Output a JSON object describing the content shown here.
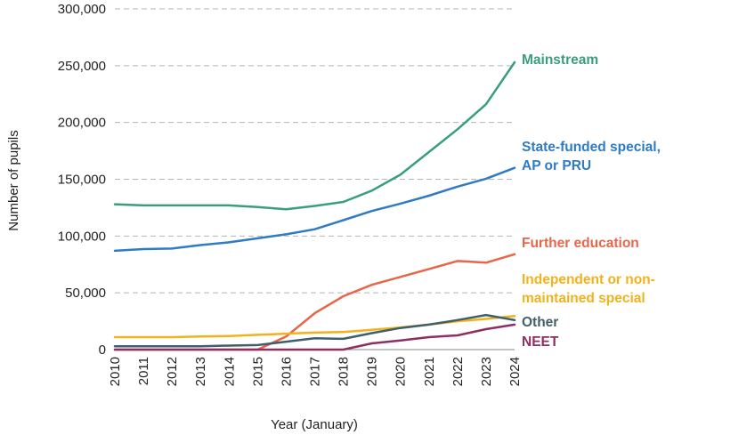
{
  "chart_data": {
    "type": "line",
    "xlabel": "Year (January)",
    "ylabel": "Number  of pupils",
    "x": [
      "2010",
      "2011",
      "2012",
      "2013",
      "2014",
      "2015",
      "2016",
      "2017",
      "2018",
      "2019",
      "2020",
      "2021",
      "2022",
      "2023",
      "2024"
    ],
    "ylim": [
      0,
      300000
    ],
    "yticks": [
      0,
      50000,
      100000,
      150000,
      200000,
      250000,
      300000
    ],
    "ytick_labels": [
      "0",
      "50,000",
      "100,000",
      "150,000",
      "200,000",
      "250,000",
      "300,000"
    ],
    "grid": "horizontal dashed",
    "legend": "inline labels at right end of lines",
    "series": [
      {
        "name": "Mainstream",
        "label_lines": [
          "Mainstream"
        ],
        "color": "#3a9e7d",
        "values": [
          128000,
          127000,
          127000,
          127000,
          127000,
          125500,
          123500,
          126500,
          130000,
          140000,
          154000,
          174000,
          194000,
          216000,
          253000
        ]
      },
      {
        "name": "State-funded special, AP or PRU",
        "label_lines": [
          "State-funded special,",
          "AP or PRU"
        ],
        "color": "#2f7bc4",
        "values": [
          87000,
          88500,
          89000,
          92000,
          94500,
          98000,
          101500,
          106000,
          114000,
          122000,
          128500,
          135500,
          143500,
          150500,
          160000
        ]
      },
      {
        "name": "Further education",
        "label_lines": [
          "Further education"
        ],
        "color": "#e8654a",
        "values": [
          0,
          0,
          0,
          0,
          0,
          0,
          11500,
          32000,
          47000,
          57000,
          64000,
          71000,
          78000,
          76500,
          84000
        ]
      },
      {
        "name": "Independent or non-maintained special",
        "label_lines": [
          "Independent or non-",
          "maintained special"
        ],
        "color": "#f2b21b",
        "values": [
          11000,
          11000,
          11000,
          11500,
          12000,
          13000,
          14000,
          15000,
          15500,
          17500,
          19500,
          22000,
          25000,
          27000,
          29500
        ]
      },
      {
        "name": "Other",
        "label_lines": [
          "Other"
        ],
        "color": "#3f5f6a",
        "values": [
          3000,
          3000,
          3000,
          3000,
          3500,
          4000,
          7000,
          10000,
          9500,
          14500,
          19000,
          22000,
          26000,
          30500,
          26000
        ]
      },
      {
        "name": "NEET",
        "label_lines": [
          "NEET"
        ],
        "color": "#8e2f62",
        "values": [
          0,
          0,
          0,
          0,
          0,
          0,
          0,
          0,
          0,
          5500,
          8000,
          11000,
          12500,
          18000,
          22000
        ]
      }
    ]
  }
}
